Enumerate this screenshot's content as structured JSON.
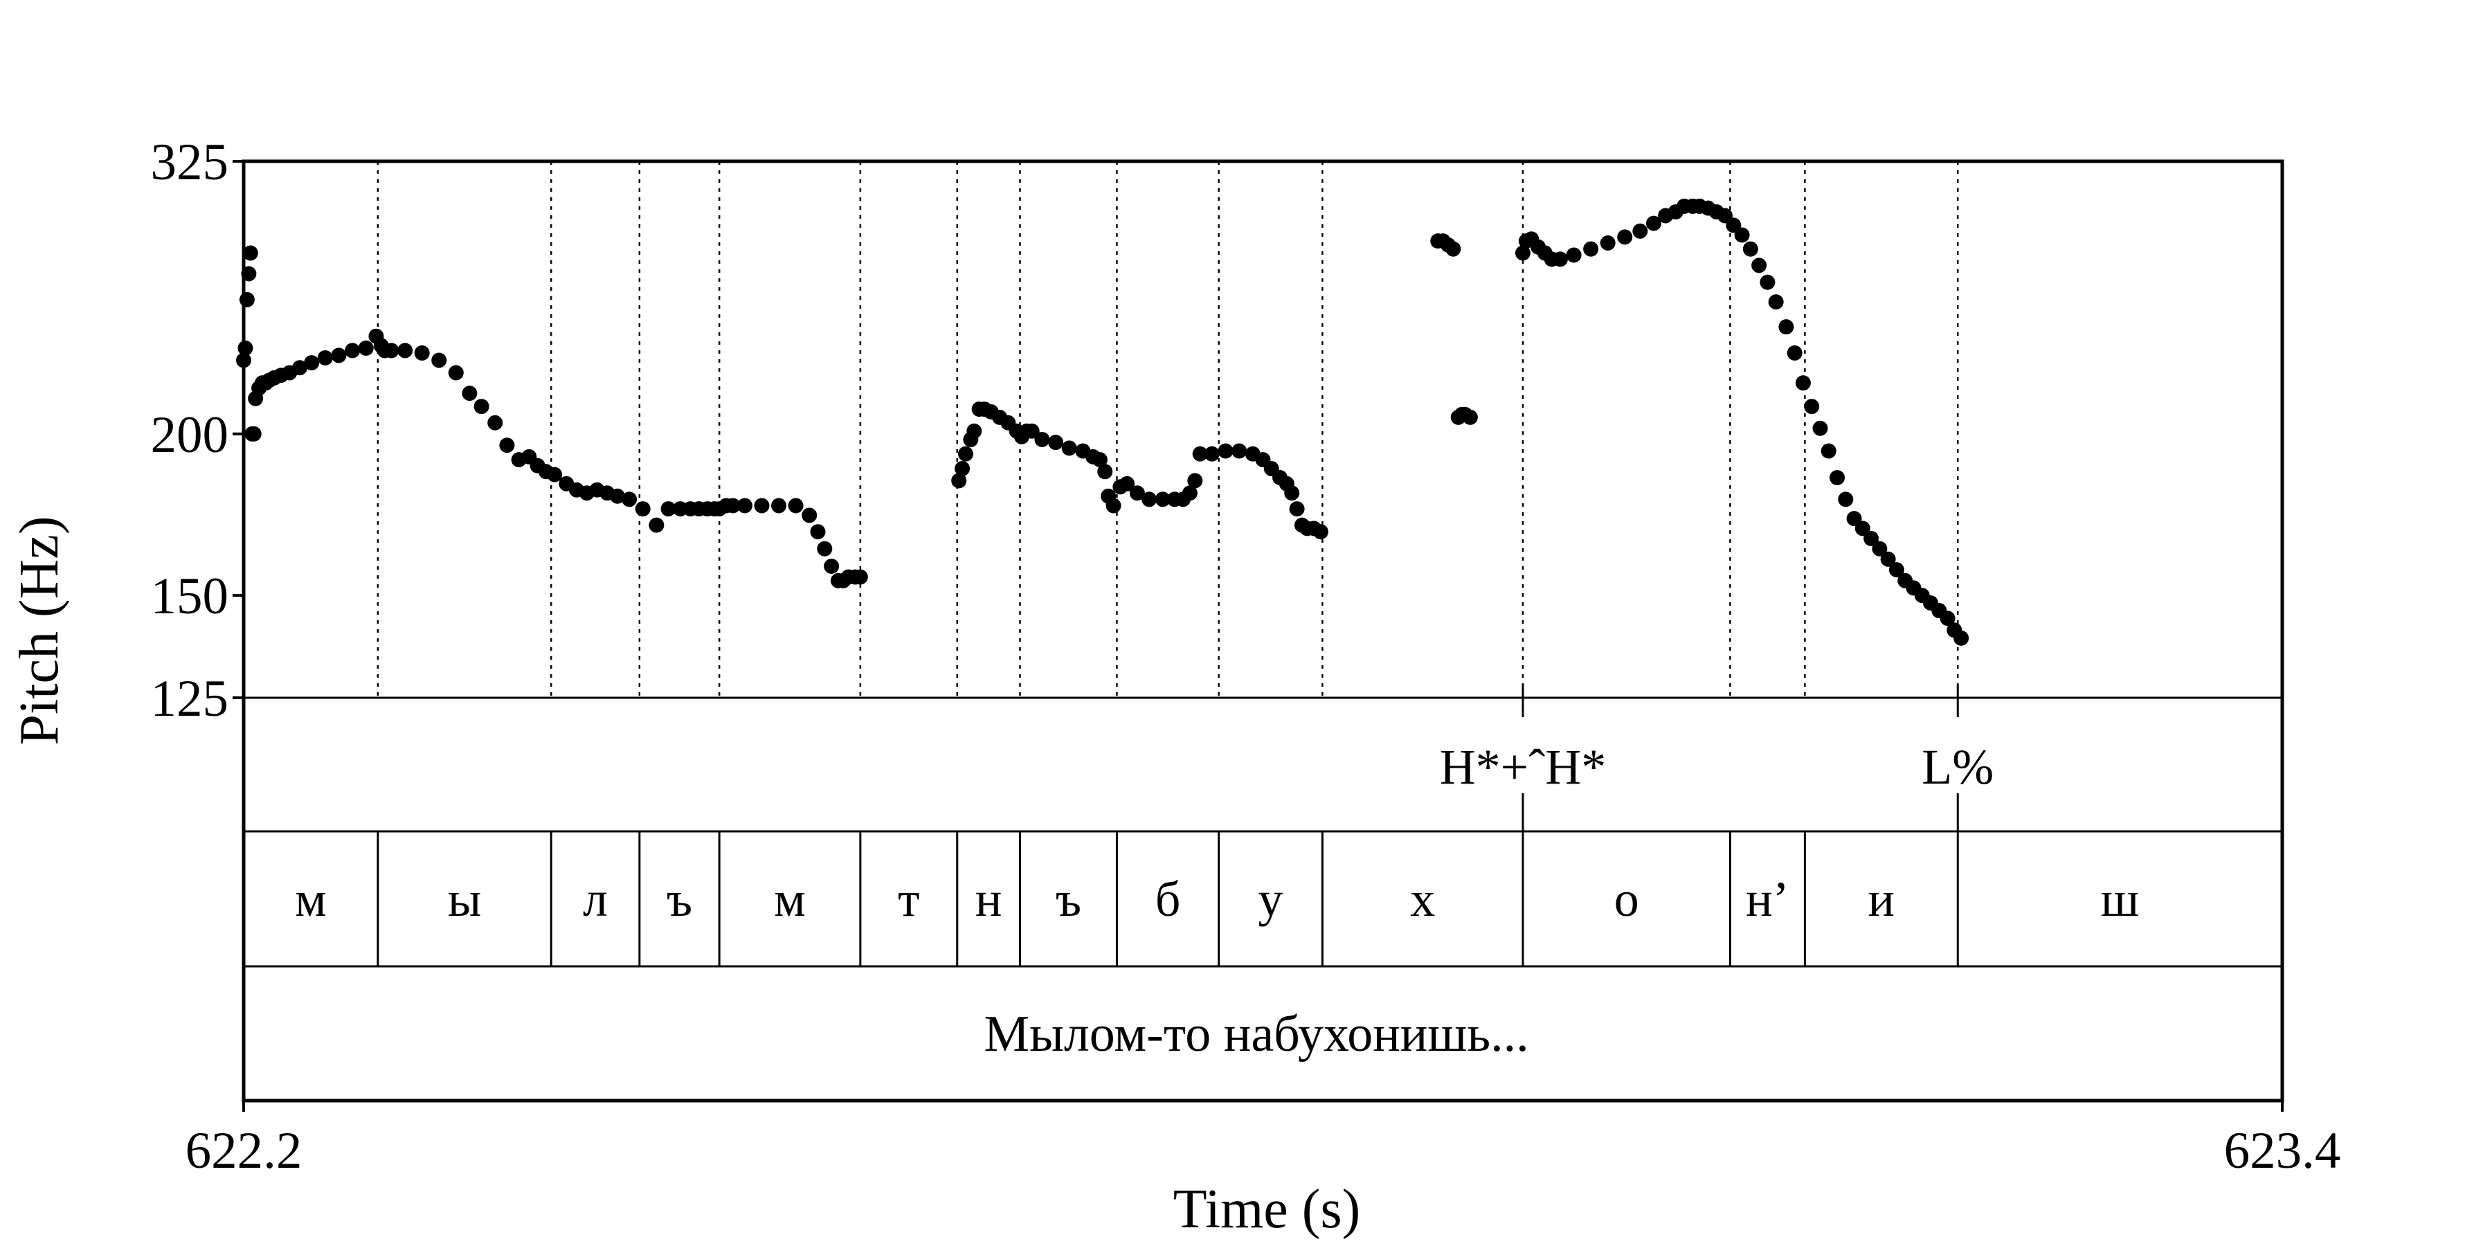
{
  "chart_data": {
    "type": "scatter",
    "title": "",
    "xlabel": "Time (s)",
    "ylabel": "Pitch (Hz)",
    "xlim": [
      622.2,
      623.4
    ],
    "ylim": [
      125,
      325
    ],
    "y_scale": "log",
    "x_ticks": [
      "622.2",
      "623.4"
    ],
    "y_ticks": [
      {
        "value": 325,
        "label": "325"
      },
      {
        "value": 200,
        "label": "200"
      },
      {
        "value": 150,
        "label": "150"
      },
      {
        "value": 125,
        "label": "125"
      }
    ],
    "segment_boundaries": [
      622.279,
      622.381,
      622.433,
      622.48,
      622.563,
      622.62,
      622.657,
      622.714,
      622.774,
      622.835,
      622.953,
      623.075,
      623.119,
      623.209
    ],
    "series": [
      {
        "x": [
          622.2,
          622.201,
          622.202,
          622.203,
          622.204,
          622.205,
          622.206,
          622.207,
          622.209,
          622.211,
          622.213,
          622.215,
          622.218,
          622.222,
          622.227,
          622.233,
          622.24,
          622.248,
          622.256,
          622.264,
          622.272,
          622.278,
          622.281,
          622.283,
          622.287,
          622.295,
          622.305,
          622.315,
          622.325,
          622.333,
          622.34,
          622.348,
          622.355,
          622.362,
          622.368,
          622.373,
          622.378,
          622.383,
          622.39,
          622.396,
          622.402,
          622.408,
          622.414,
          622.42,
          622.427,
          622.435,
          622.443,
          622.45,
          622.457,
          622.463,
          622.468,
          622.473,
          622.477,
          622.48,
          622.484,
          622.488,
          622.495,
          622.505,
          622.515,
          622.525,
          622.533,
          622.538,
          622.542,
          622.546,
          622.55,
          622.553,
          622.556,
          622.56,
          622.563
        ],
        "y": [
          228,
          233,
          254,
          266,
          276,
          200,
          200,
          213,
          217,
          219,
          219,
          220,
          221,
          222,
          223,
          225,
          227,
          229,
          230,
          232,
          233,
          238,
          234,
          232,
          232,
          232,
          231,
          228,
          223,
          215,
          210,
          204,
          196,
          191,
          192,
          189,
          187,
          186,
          183,
          181,
          180,
          181,
          180,
          179,
          178,
          175,
          170,
          175,
          175,
          175,
          175,
          175,
          175,
          175,
          176,
          176,
          176,
          176,
          176,
          176,
          173,
          168,
          163,
          158,
          154,
          154,
          155,
          155,
          155
        ]
      },
      {
        "x": [
          622.621,
          622.623,
          622.625,
          622.628,
          622.63,
          622.633,
          622.636,
          622.64,
          622.645,
          622.65,
          622.655,
          622.658,
          622.661,
          622.664,
          622.67,
          622.678,
          622.686,
          622.694,
          622.7,
          622.704,
          622.707,
          622.709,
          622.712,
          622.716,
          622.72,
          622.726,
          622.733,
          622.741,
          622.748,
          622.753,
          622.757,
          622.76,
          622.763,
          622.77,
          622.778,
          622.786,
          622.794,
          622.8,
          622.805,
          622.81,
          622.814,
          622.817,
          622.82,
          622.823,
          622.826,
          622.83,
          622.834
        ],
        "y": [
          184,
          188,
          193,
          198,
          201,
          209,
          209,
          208,
          206,
          204,
          201,
          199,
          201,
          201,
          198,
          197,
          195,
          194,
          192,
          191,
          187,
          179,
          176,
          182,
          183,
          180,
          178,
          178,
          178,
          178,
          180,
          184,
          193,
          193,
          194,
          194,
          193,
          191,
          188,
          185,
          183,
          180,
          175,
          170,
          169,
          169,
          168
        ]
      },
      {
        "x": [
          622.903,
          622.906,
          622.909,
          622.912,
          622.915,
          622.917,
          622.919,
          622.922
        ],
        "y": [
          282,
          282,
          280,
          278,
          206,
          207,
          207,
          206
        ]
      },
      {
        "x": [
          622.953,
          622.955,
          622.958,
          622.962,
          622.966,
          622.97,
          622.975,
          622.983,
          622.993,
          623.003,
          623.013,
          623.022,
          623.03,
          623.037,
          623.043,
          623.048,
          623.053,
          623.057,
          623.062,
          623.067,
          623.072,
          623.077,
          623.082,
          623.087,
          623.092,
          623.097,
          623.102,
          623.108,
          623.113,
          623.118,
          623.123,
          623.128,
          623.133,
          623.138,
          623.143,
          623.148,
          623.153,
          623.158,
          623.163,
          623.168,
          623.173,
          623.178,
          623.183,
          623.188,
          623.193,
          623.198,
          623.203,
          623.207,
          623.211
        ],
        "y": [
          276,
          282,
          283,
          279,
          276,
          273,
          273,
          275,
          278,
          281,
          284,
          287,
          291,
          295,
          297,
          300,
          300,
          300,
          299,
          297,
          295,
          290,
          285,
          278,
          270,
          262,
          253,
          242,
          231,
          219,
          210,
          202,
          194,
          185,
          178,
          172,
          169,
          166,
          163,
          160,
          157,
          154,
          152,
          150,
          148,
          146,
          144,
          141,
          139
        ]
      }
    ]
  },
  "tiers": {
    "tones": [
      {
        "label": "H*+ˆH*",
        "center": 622.953,
        "boundary": 622.953
      },
      {
        "label": "L%",
        "center": 623.209,
        "boundary": 623.209
      }
    ],
    "segments": [
      {
        "label": "м",
        "start": 622.2,
        "end": 622.279
      },
      {
        "label": "ы",
        "start": 622.279,
        "end": 622.381
      },
      {
        "label": "л",
        "start": 622.381,
        "end": 622.433
      },
      {
        "label": "ъ",
        "start": 622.433,
        "end": 622.48
      },
      {
        "label": "м",
        "start": 622.48,
        "end": 622.563
      },
      {
        "label": "т",
        "start": 622.563,
        "end": 622.62
      },
      {
        "label": "н",
        "start": 622.62,
        "end": 622.657
      },
      {
        "label": "ъ",
        "start": 622.657,
        "end": 622.714
      },
      {
        "label": "б",
        "start": 622.714,
        "end": 622.774
      },
      {
        "label": "у",
        "start": 622.774,
        "end": 622.835
      },
      {
        "label": "х",
        "start": 622.835,
        "end": 622.953
      },
      {
        "label": "о",
        "start": 622.953,
        "end": 623.075
      },
      {
        "label": "н’",
        "start": 623.075,
        "end": 623.119
      },
      {
        "label": "и",
        "start": 623.119,
        "end": 623.209
      },
      {
        "label": "ш",
        "start": 623.209,
        "end": 623.4
      }
    ],
    "sentence": "Мылом-то набухонишь..."
  },
  "colors": {
    "points": "#000000",
    "frame": "#000000",
    "background": "#ffffff"
  }
}
